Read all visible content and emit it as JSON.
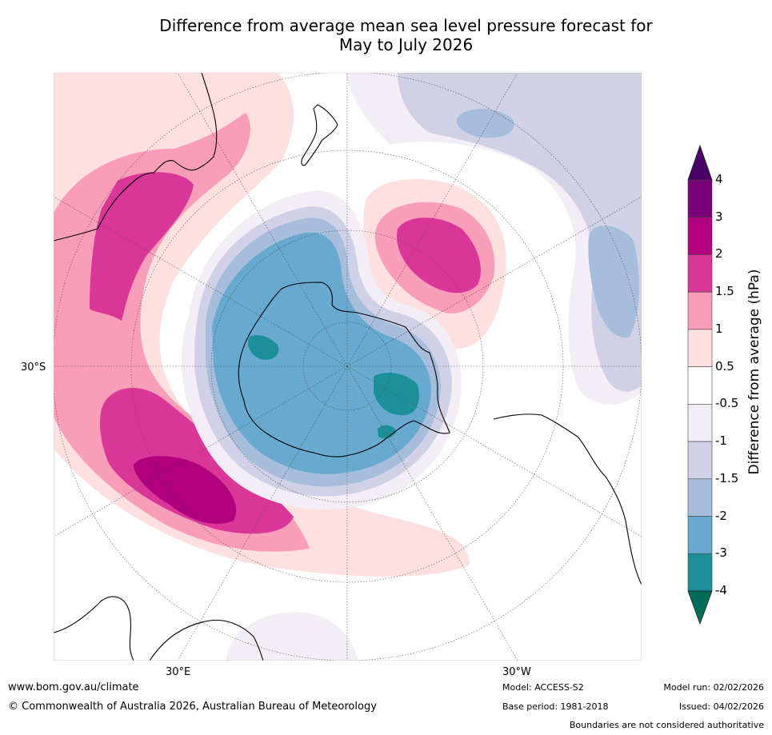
{
  "title_line1": "Difference from average mean sea level pressure forecast for",
  "title_line2": "May to July 2026",
  "lat_labels": {
    "west": "30°S",
    "east_lon": "30°E",
    "west_lon": "30°W"
  },
  "colorbar": {
    "title": "Difference from average (hPa)",
    "ticks": [
      "4",
      "3",
      "2",
      "1.5",
      "1",
      "0.5",
      "-0.5",
      "-1",
      "-1.5",
      "-2",
      "-3",
      "-4"
    ],
    "colors": [
      "#4b0068",
      "#7a0078",
      "#b0007e",
      "#da3698",
      "#f99db8",
      "#fde0df",
      "#ffffff",
      "#f3eef5",
      "#d0d1e6",
      "#a6bddb",
      "#67a9cf",
      "#1c9099",
      "#016c59"
    ]
  },
  "footer": {
    "website": "www.bom.gov.au/climate",
    "copyright": "© Commonwealth of Australia 2026, Australian Bureau of Meteorology",
    "model": "Model: ACCESS-S2",
    "base_period": "Base period: 1981-2018",
    "model_run": "Model run: 02/02/2026",
    "issued": "Issued: 04/02/2026",
    "disclaimer": "Boundaries are not considered authoritative"
  }
}
